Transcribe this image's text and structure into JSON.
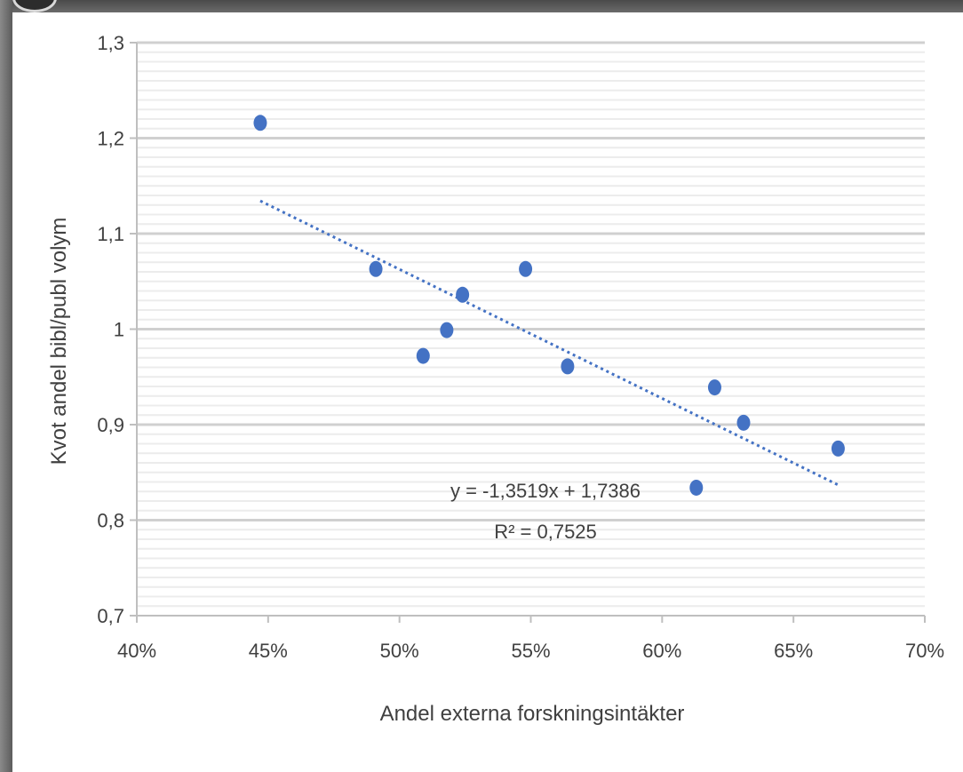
{
  "chart_data": {
    "type": "scatter",
    "title": "",
    "xlabel": "Andel externa forskningsintäkter",
    "ylabel": "Kvot andel bibl/publ volym",
    "xlim": [
      0.4,
      0.7
    ],
    "ylim": [
      0.7,
      1.3
    ],
    "x_ticks": [
      {
        "value": 0.4,
        "label": "40%"
      },
      {
        "value": 0.45,
        "label": "45%"
      },
      {
        "value": 0.5,
        "label": "50%"
      },
      {
        "value": 0.55,
        "label": "55%"
      },
      {
        "value": 0.6,
        "label": "60%"
      },
      {
        "value": 0.65,
        "label": "65%"
      },
      {
        "value": 0.7,
        "label": "70%"
      }
    ],
    "y_ticks": [
      {
        "value": 0.7,
        "label": "0,7"
      },
      {
        "value": 0.8,
        "label": "0,8"
      },
      {
        "value": 0.9,
        "label": "0,9"
      },
      {
        "value": 1.0,
        "label": "1"
      },
      {
        "value": 1.1,
        "label": "1,1"
      },
      {
        "value": 1.2,
        "label": "1,2"
      },
      {
        "value": 1.3,
        "label": "1,3"
      }
    ],
    "minor_y_step": 0.01,
    "grid": true,
    "series": [
      {
        "color": "#4472c4",
        "points": [
          {
            "x": 0.447,
            "y": 1.216
          },
          {
            "x": 0.491,
            "y": 1.063
          },
          {
            "x": 0.509,
            "y": 0.972
          },
          {
            "x": 0.518,
            "y": 0.999
          },
          {
            "x": 0.524,
            "y": 1.036
          },
          {
            "x": 0.548,
            "y": 1.063
          },
          {
            "x": 0.564,
            "y": 0.961
          },
          {
            "x": 0.613,
            "y": 0.834
          },
          {
            "x": 0.62,
            "y": 0.939
          },
          {
            "x": 0.631,
            "y": 0.902
          },
          {
            "x": 0.667,
            "y": 0.875
          }
        ]
      }
    ],
    "trendline": {
      "type": "linear",
      "slope": -1.3519,
      "intercept": 1.7386,
      "x_range": [
        0.447,
        0.667
      ],
      "color": "#4472c4",
      "style": "dotted",
      "equation_label": "y = -1,3519x + 1,7386",
      "r2_label": "R² = 0,7525"
    }
  }
}
